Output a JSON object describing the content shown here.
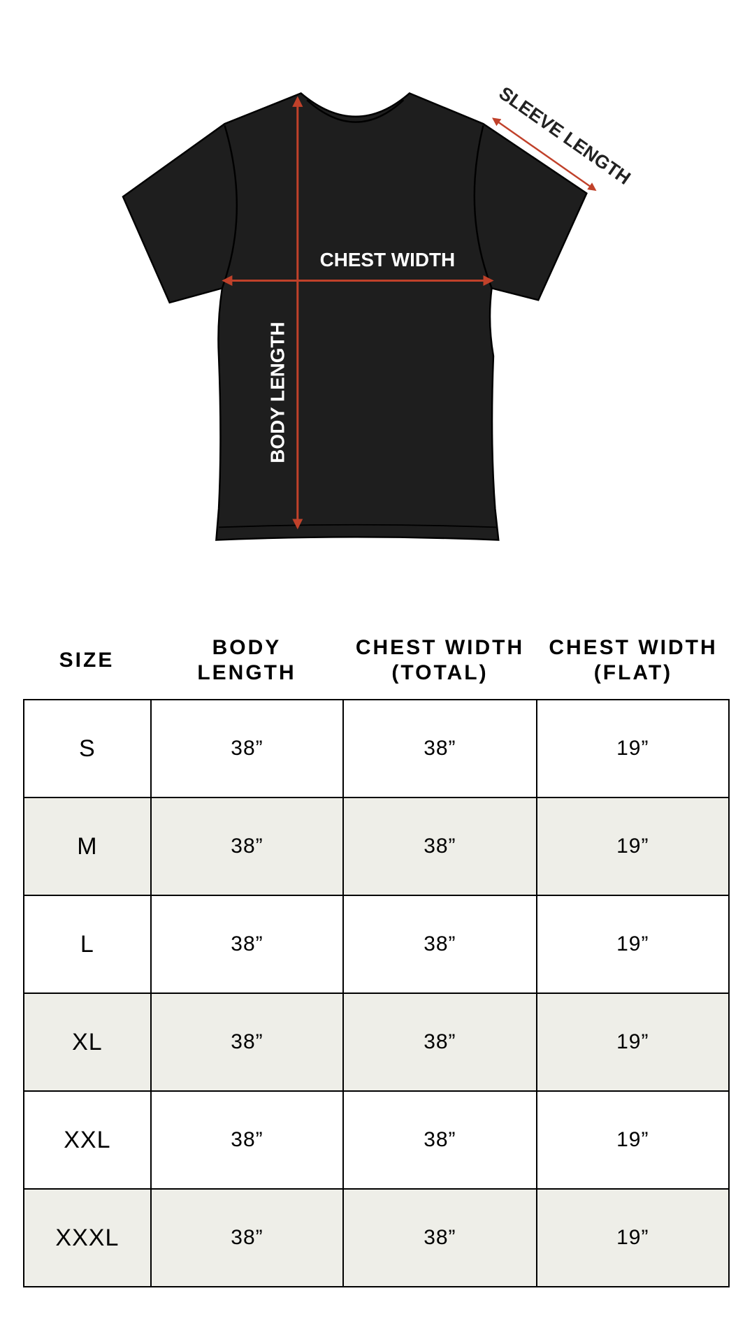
{
  "diagram": {
    "chest_label": "CHEST WIDTH",
    "body_label": "BODY LENGTH",
    "sleeve_label": "SLEEVE LENGTH",
    "shirt_color": "#1e1e1e",
    "arrow_color": "#c0412a"
  },
  "table": {
    "headers": [
      {
        "line1": "SIZE",
        "line2": ""
      },
      {
        "line1": "BODY",
        "line2": "LENGTH"
      },
      {
        "line1": "CHEST WIDTH",
        "line2": "(TOTAL)"
      },
      {
        "line1": "CHEST WIDTH",
        "line2": "(FLAT)"
      }
    ],
    "rows": [
      [
        "S",
        "38”",
        "38”",
        "19”"
      ],
      [
        "M",
        "38”",
        "38”",
        "19”"
      ],
      [
        "L",
        "38”",
        "38”",
        "19”"
      ],
      [
        "XL",
        "38”",
        "38”",
        "19”"
      ],
      [
        "XXL",
        "38”",
        "38”",
        "19”"
      ],
      [
        "XXXL",
        "38”",
        "38”",
        "19”"
      ]
    ],
    "alt_row_color": "#eeeee8"
  }
}
